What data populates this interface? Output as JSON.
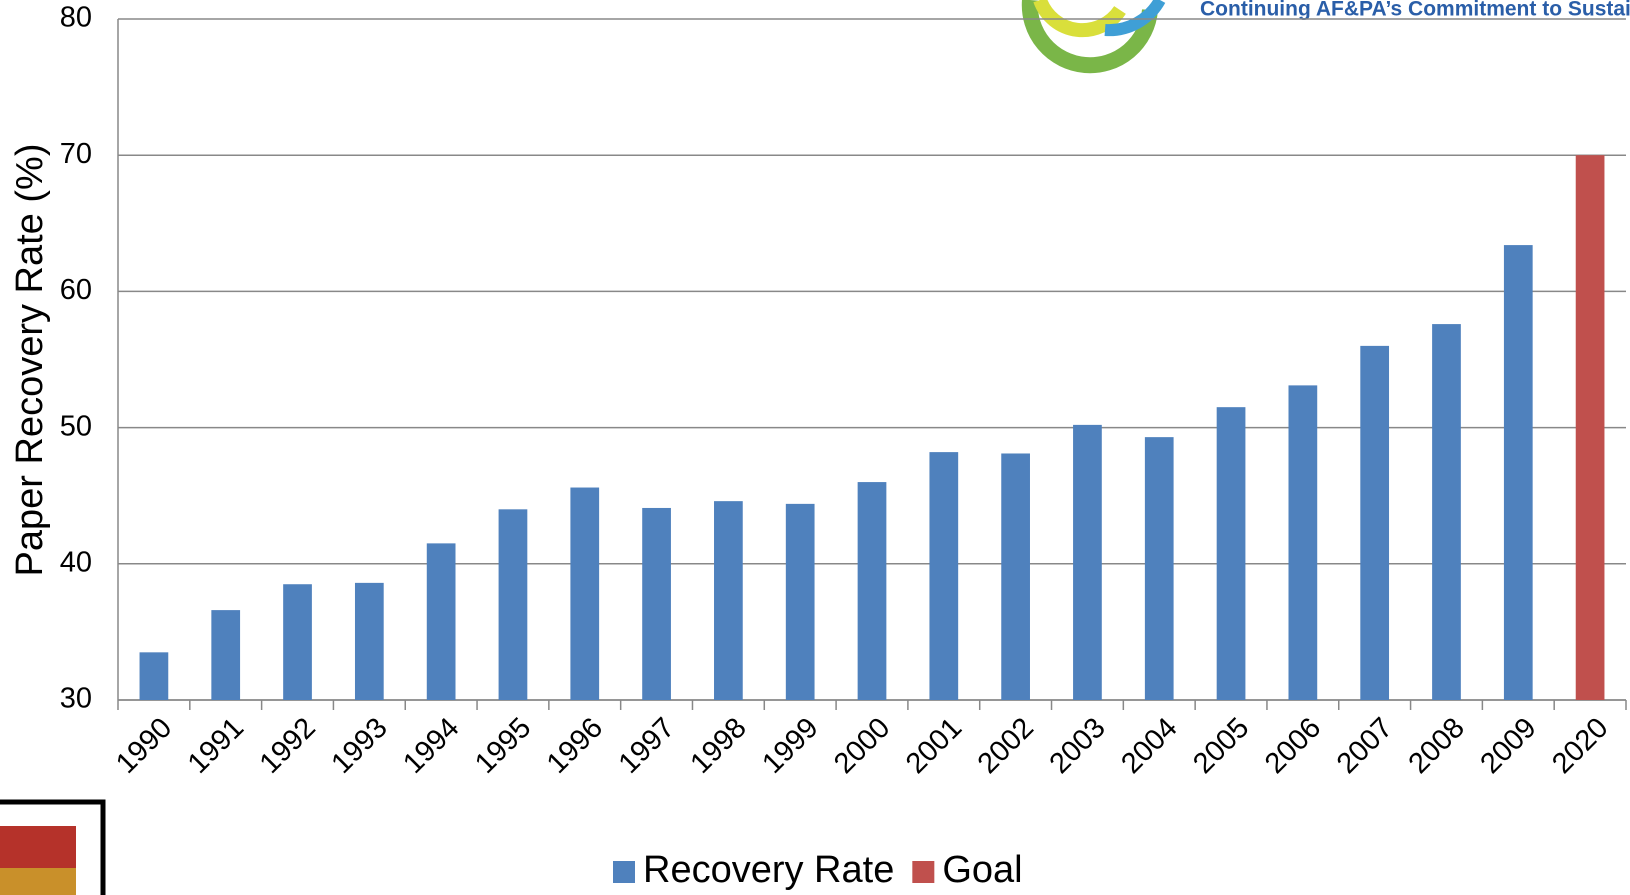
{
  "logo_text": "Continuing AF&PA’s Commitment to Sustainabilit",
  "chart_data": {
    "type": "bar",
    "y_label": "Paper Recovery Rate (%)",
    "categories": [
      "1990",
      "1991",
      "1992",
      "1993",
      "1994",
      "1995",
      "1996",
      "1997",
      "1998",
      "1999",
      "2000",
      "2001",
      "2002",
      "2003",
      "2004",
      "2005",
      "2006",
      "2007",
      "2008",
      "2009",
      "2020"
    ],
    "series": [
      {
        "name": "Recovery Rate",
        "color": "#4f81bd",
        "values": [
          33.5,
          36.6,
          38.5,
          38.6,
          41.5,
          44.0,
          45.6,
          44.1,
          44.6,
          44.4,
          46.0,
          48.2,
          48.1,
          50.2,
          49.3,
          51.5,
          53.1,
          56.0,
          57.6,
          63.4,
          null
        ]
      },
      {
        "name": "Goal",
        "color": "#c0504d",
        "values": [
          null,
          null,
          null,
          null,
          null,
          null,
          null,
          null,
          null,
          null,
          null,
          null,
          null,
          null,
          null,
          null,
          null,
          null,
          null,
          null,
          70
        ]
      }
    ],
    "ylim": [
      30,
      80
    ],
    "yticks": [
      30,
      40,
      50,
      60,
      70,
      80
    ],
    "grid": true,
    "legend": "bottom"
  }
}
